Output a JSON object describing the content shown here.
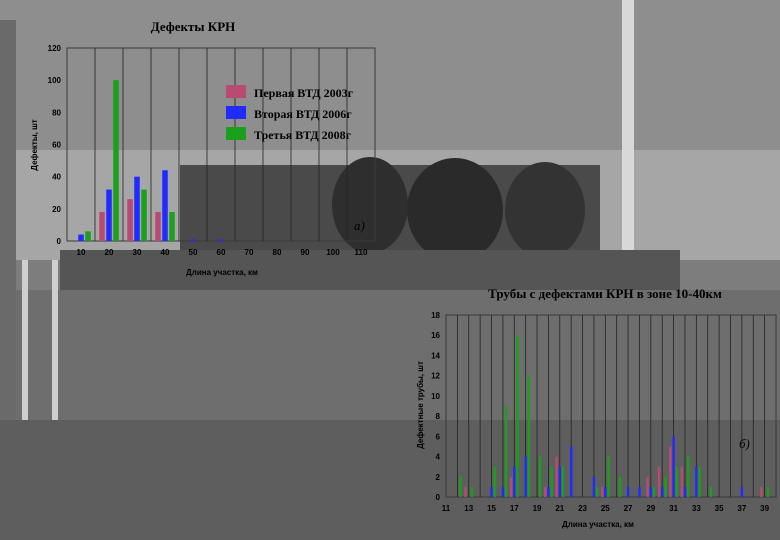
{
  "colors": {
    "first": "#b94a72",
    "second": "#1f2bff",
    "third": "#1aa01a"
  },
  "chart_data": [
    {
      "type": "bar",
      "title": "Дефекты КРН",
      "xlabel": "Длина участка, км",
      "ylabel": "Дефекты, шт",
      "ylim": [
        0,
        120
      ],
      "yticks": [
        0,
        20,
        40,
        60,
        80,
        100,
        120
      ],
      "xlim": [
        5,
        115
      ],
      "xticks": [
        10,
        20,
        30,
        40,
        50,
        60,
        70,
        80,
        90,
        100,
        110
      ],
      "x": [
        10,
        20,
        30,
        40,
        50,
        60
      ],
      "annotation": "а)",
      "legend_position": "upper-center",
      "series": [
        {
          "name": "Первая ВТД 2003г",
          "values": [
            0,
            18,
            26,
            18,
            0,
            0
          ]
        },
        {
          "name": "Вторая ВТД 2006г",
          "values": [
            4,
            32,
            40,
            44,
            1,
            1
          ]
        },
        {
          "name": "Третья ВТД 2008г",
          "values": [
            6,
            100,
            32,
            18,
            0,
            0
          ]
        }
      ],
      "grid": true
    },
    {
      "type": "bar",
      "title": "Трубы с дефектами КРН в зоне 10-40км",
      "xlabel": "Длина участка, км",
      "ylabel": "Дефектные трубы, шт",
      "ylim": [
        0,
        18
      ],
      "yticks": [
        0,
        2,
        4,
        6,
        8,
        10,
        12,
        14,
        16,
        18
      ],
      "xlim": [
        11,
        40
      ],
      "xticks": [
        11,
        13,
        15,
        17,
        19,
        21,
        23,
        25,
        27,
        29,
        31,
        33,
        35,
        37,
        39
      ],
      "x": [
        12,
        13,
        15,
        16,
        17,
        18,
        19,
        20,
        21,
        22,
        24,
        25,
        26,
        27,
        28,
        29,
        30,
        31,
        32,
        33,
        34,
        37,
        39
      ],
      "annotation": "б)",
      "series": [
        {
          "name": "Первая ВТД 2003г",
          "values": [
            0,
            1,
            0,
            0,
            2,
            0,
            0,
            1,
            4,
            0,
            0,
            1,
            0,
            0,
            0,
            2,
            3,
            5,
            3,
            0,
            0,
            0,
            1
          ]
        },
        {
          "name": "Вторая ВТД 2006г",
          "values": [
            0,
            0,
            1,
            1,
            3,
            4,
            0,
            1,
            3,
            5,
            2,
            1,
            0,
            1,
            1,
            1,
            1,
            6,
            1,
            3,
            0,
            1,
            0
          ]
        },
        {
          "name": "Третья ВТД 2008г",
          "values": [
            2,
            1,
            3,
            9,
            16,
            12,
            4,
            3,
            3,
            0,
            1,
            4,
            2,
            0,
            0,
            1,
            2,
            3,
            4,
            3,
            1,
            0,
            1
          ]
        }
      ],
      "grid": true
    }
  ]
}
